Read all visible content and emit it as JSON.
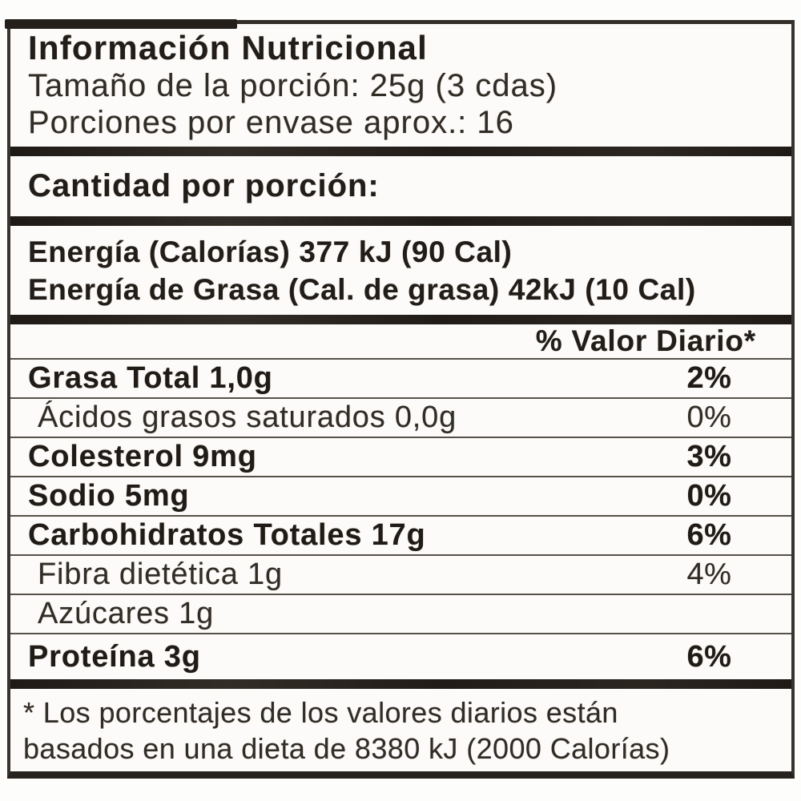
{
  "label": {
    "header": {
      "title": "Información Nutricional",
      "serving_size": "Tamaño de la porción: 25g (3 cdas)",
      "servings_per_container": "Porciones por envase aprox.: 16"
    },
    "amount_per_serving": "Cantidad por porción:",
    "energy": {
      "line1": "Energía (Calorías) 377 kJ (90 Cal)",
      "line2": "Energía de Grasa (Cal. de grasa) 42kJ (10 Cal)"
    },
    "daily_value_header": "% Valor Diario*",
    "rows": [
      {
        "label": "Grasa Total 1,0g",
        "dv": "2%"
      },
      {
        "label": "Ácidos grasos saturados 0,0g",
        "dv": "0%"
      },
      {
        "label": "Colesterol 9mg",
        "dv": "3%"
      },
      {
        "label": "Sodio 5mg",
        "dv": "0%"
      },
      {
        "label": "Carbohidratos Totales 17g",
        "dv": "6%"
      },
      {
        "label": "Fibra dietética 1g",
        "dv": "4%"
      },
      {
        "label": "Azúcares 1g",
        "dv": ""
      },
      {
        "label": "Proteína 3g",
        "dv": "6%"
      }
    ],
    "footnote": {
      "line1": "* Los porcentajes de los valores diarios están",
      "line2": "basados en una dieta de 8380 kJ (2000 Calorías)"
    },
    "colors": {
      "text": "#2a2520",
      "border": "#38332d",
      "divider_bar": "#241f1a",
      "background": "#fcfbf9"
    }
  }
}
